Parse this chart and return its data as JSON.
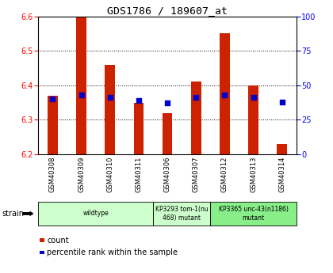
{
  "title": "GDS1786 / 189607_at",
  "samples": [
    "GSM40308",
    "GSM40309",
    "GSM40310",
    "GSM40311",
    "GSM40306",
    "GSM40307",
    "GSM40312",
    "GSM40313",
    "GSM40314"
  ],
  "count_values": [
    6.37,
    6.6,
    6.46,
    6.35,
    6.32,
    6.41,
    6.55,
    6.4,
    6.23
  ],
  "percentile_values": [
    40,
    43,
    41,
    39,
    37,
    41,
    43,
    41,
    38
  ],
  "ylim": [
    6.2,
    6.6
  ],
  "yticks": [
    6.2,
    6.3,
    6.4,
    6.5,
    6.6
  ],
  "y2lim": [
    0,
    100
  ],
  "y2ticks": [
    0,
    25,
    50,
    75,
    100
  ],
  "bar_color": "#cc2200",
  "dot_color": "#0000cc",
  "bg_color": "#ffffff",
  "strain_groups": [
    {
      "label": "wildtype",
      "start": 0,
      "end": 3,
      "color": "#ccffcc"
    },
    {
      "label": "KP3293 tom-1(nu\n468) mutant",
      "start": 4,
      "end": 5,
      "color": "#ccffcc"
    },
    {
      "label": "KP3365 unc-43(n1186)\nmutant",
      "start": 6,
      "end": 8,
      "color": "#88ee88"
    }
  ],
  "bar_width": 0.35,
  "base_value": 6.2
}
